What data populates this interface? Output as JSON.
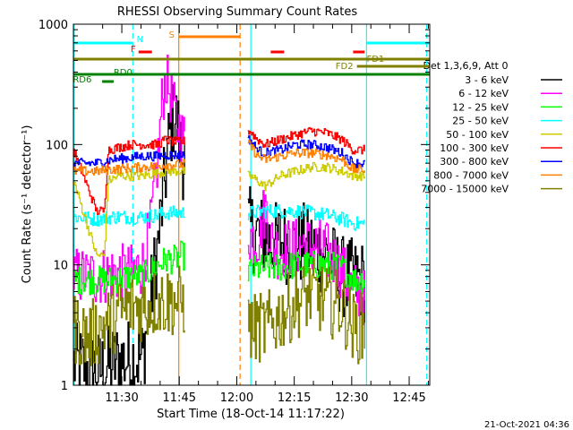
{
  "chart_data": {
    "type": "line",
    "title": "RHESSI Observing Summary Count Rates",
    "xlabel": "Start Time (18-Oct-14 11:17:22)",
    "ylabel": "Count Rate (s⁻¹ detector⁻¹)",
    "y_scale": "log",
    "ylim": [
      1,
      1000
    ],
    "xlim_minutes_after_start": [
      0,
      93
    ],
    "x_ticks": [
      "11:30",
      "11:45",
      "12:00",
      "12:15",
      "12:30",
      "12:45"
    ],
    "y_ticks": [
      "1",
      "10",
      "100",
      "1000"
    ],
    "legend_title": "Det 1,3,6,9, Att 0",
    "legend_placement": "right",
    "timestamp": "21-Oct-2021 04:36",
    "series": [
      {
        "name": "3 - 6 keV",
        "color": "#000000",
        "points": [
          [
            0,
            1.5
          ],
          [
            6,
            1.3
          ],
          [
            12,
            1.6
          ],
          [
            18,
            1.7
          ],
          [
            22,
            15
          ],
          [
            24,
            60
          ],
          [
            25,
            120
          ],
          [
            26,
            170
          ],
          [
            27,
            150
          ],
          [
            28,
            80
          ],
          [
            46,
            20
          ],
          [
            48,
            18
          ],
          [
            50,
            17
          ],
          [
            52,
            15
          ],
          [
            54,
            16
          ],
          [
            56,
            15
          ],
          [
            58,
            14
          ],
          [
            60,
            15
          ],
          [
            62,
            14
          ],
          [
            64,
            13
          ],
          [
            66,
            12
          ],
          [
            70,
            8
          ],
          [
            73,
            7.5
          ],
          [
            75,
            7.5
          ],
          [
            76,
            7
          ]
        ]
      },
      {
        "name": "6 - 12 keV",
        "color": "#ff00ff",
        "points": [
          [
            0,
            8
          ],
          [
            6,
            8
          ],
          [
            10,
            8.5
          ],
          [
            15,
            8.5
          ],
          [
            18,
            10
          ],
          [
            20,
            20
          ],
          [
            22,
            80
          ],
          [
            23,
            220
          ],
          [
            24,
            350
          ],
          [
            25,
            280
          ],
          [
            26,
            200
          ],
          [
            28,
            120
          ],
          [
            46,
            18
          ],
          [
            48,
            16
          ],
          [
            50,
            30
          ],
          [
            52,
            14
          ],
          [
            54,
            13
          ],
          [
            56,
            14
          ],
          [
            58,
            14
          ],
          [
            60,
            15
          ],
          [
            62,
            14
          ],
          [
            64,
            14
          ],
          [
            66,
            13
          ],
          [
            70,
            9
          ],
          [
            73,
            6
          ],
          [
            75,
            6
          ],
          [
            76,
            5
          ]
        ]
      },
      {
        "name": "12 - 25 keV",
        "color": "#00ff00",
        "points": [
          [
            0,
            7.5
          ],
          [
            6,
            7.5
          ],
          [
            10,
            7.5
          ],
          [
            15,
            8
          ],
          [
            18,
            8
          ],
          [
            22,
            10
          ],
          [
            24,
            11
          ],
          [
            26,
            11
          ],
          [
            28,
            12
          ],
          [
            46,
            9
          ],
          [
            50,
            9.5
          ],
          [
            54,
            9.5
          ],
          [
            58,
            10
          ],
          [
            62,
            10
          ],
          [
            66,
            10
          ],
          [
            70,
            9.5
          ],
          [
            73,
            7.5
          ],
          [
            76,
            7.5
          ]
        ]
      },
      {
        "name": "25 - 50 keV",
        "color": "#00ffff",
        "points": [
          [
            0,
            25
          ],
          [
            6,
            24
          ],
          [
            10,
            25
          ],
          [
            15,
            25
          ],
          [
            18,
            25
          ],
          [
            22,
            26
          ],
          [
            24,
            27
          ],
          [
            26,
            27
          ],
          [
            28,
            27
          ],
          [
            46,
            27
          ],
          [
            50,
            28
          ],
          [
            54,
            28
          ],
          [
            58,
            28
          ],
          [
            62,
            27
          ],
          [
            66,
            26
          ],
          [
            70,
            24
          ],
          [
            73,
            22
          ],
          [
            76,
            22
          ]
        ]
      },
      {
        "name": "50 - 100 keV",
        "color": "#cccc00",
        "points": [
          [
            0,
            50
          ],
          [
            6,
            12
          ],
          [
            8,
            12
          ],
          [
            9,
            50
          ],
          [
            12,
            55
          ],
          [
            15,
            55
          ],
          [
            18,
            55
          ],
          [
            22,
            58
          ],
          [
            24,
            60
          ],
          [
            26,
            60
          ],
          [
            28,
            60
          ],
          [
            46,
            55
          ],
          [
            48,
            50
          ],
          [
            50,
            45
          ],
          [
            54,
            55
          ],
          [
            58,
            60
          ],
          [
            62,
            65
          ],
          [
            66,
            65
          ],
          [
            70,
            60
          ],
          [
            73,
            55
          ],
          [
            76,
            55
          ]
        ]
      },
      {
        "name": "100 - 300 keV",
        "color": "#ff0000",
        "points": [
          [
            0,
            90
          ],
          [
            6,
            28
          ],
          [
            8,
            28
          ],
          [
            9,
            90
          ],
          [
            12,
            95
          ],
          [
            15,
            100
          ],
          [
            18,
            100
          ],
          [
            22,
            100
          ],
          [
            24,
            110
          ],
          [
            26,
            105
          ],
          [
            28,
            105
          ],
          [
            46,
            130
          ],
          [
            48,
            110
          ],
          [
            50,
            100
          ],
          [
            54,
            110
          ],
          [
            58,
            120
          ],
          [
            62,
            130
          ],
          [
            66,
            125
          ],
          [
            70,
            110
          ],
          [
            73,
            90
          ],
          [
            76,
            90
          ]
        ]
      },
      {
        "name": "300 - 800 keV",
        "color": "#0000ff",
        "points": [
          [
            0,
            70
          ],
          [
            6,
            70
          ],
          [
            10,
            75
          ],
          [
            15,
            78
          ],
          [
            18,
            80
          ],
          [
            22,
            80
          ],
          [
            24,
            82
          ],
          [
            26,
            82
          ],
          [
            28,
            82
          ],
          [
            46,
            110
          ],
          [
            48,
            90
          ],
          [
            50,
            85
          ],
          [
            54,
            90
          ],
          [
            58,
            100
          ],
          [
            62,
            100
          ],
          [
            66,
            95
          ],
          [
            70,
            85
          ],
          [
            73,
            70
          ],
          [
            76,
            70
          ]
        ]
      },
      {
        "name": "800 - 7000 keV",
        "color": "#ff8000",
        "points": [
          [
            0,
            60
          ],
          [
            6,
            60
          ],
          [
            10,
            62
          ],
          [
            15,
            64
          ],
          [
            18,
            65
          ],
          [
            22,
            66
          ],
          [
            24,
            68
          ],
          [
            26,
            68
          ],
          [
            28,
            68
          ],
          [
            46,
            100
          ],
          [
            48,
            80
          ],
          [
            50,
            75
          ],
          [
            54,
            80
          ],
          [
            58,
            85
          ],
          [
            62,
            85
          ],
          [
            66,
            82
          ],
          [
            70,
            75
          ],
          [
            73,
            62
          ],
          [
            76,
            62
          ]
        ]
      },
      {
        "name": "7000 - 15000 keV",
        "color": "#808000",
        "points": [
          [
            0,
            3
          ],
          [
            4,
            2.5
          ],
          [
            8,
            3.2
          ],
          [
            12,
            4
          ],
          [
            15,
            4.5
          ],
          [
            18,
            4.5
          ],
          [
            22,
            5
          ],
          [
            24,
            5
          ],
          [
            26,
            5
          ],
          [
            28,
            5
          ],
          [
            46,
            3
          ],
          [
            48,
            3
          ],
          [
            50,
            3
          ],
          [
            52,
            3.3
          ],
          [
            54,
            3.8
          ],
          [
            56,
            4.3
          ],
          [
            58,
            4.8
          ],
          [
            60,
            5.3
          ],
          [
            62,
            5.8
          ],
          [
            64,
            5.3
          ],
          [
            66,
            5
          ],
          [
            70,
            4.5
          ],
          [
            73,
            3
          ],
          [
            76,
            3
          ]
        ]
      }
    ],
    "flag_bars": [
      {
        "label": "N",
        "color": "#00ffff",
        "segments": [
          [
            0,
            15.5
          ],
          [
            76.5,
            93
          ]
        ],
        "y": 48
      },
      {
        "label": "S",
        "color": "#ff8000",
        "segments": [
          [
            27.5,
            43.5
          ]
        ],
        "y": 41
      },
      {
        "label": "F",
        "color": "#ff0000",
        "segments": [
          [
            17,
            20.5
          ],
          [
            51.5,
            55
          ],
          [
            73,
            76
          ]
        ],
        "y": 58
      },
      {
        "label": "FD1",
        "color": "#808000",
        "segments": [
          [
            0,
            93
          ]
        ],
        "y": 66
      },
      {
        "label": "FD2",
        "color": "#808000",
        "segments": [
          [
            74,
            93
          ]
        ],
        "y": 74
      },
      {
        "label": "RD0",
        "color": "#008000",
        "segments": [
          [
            0,
            93
          ]
        ],
        "y": 83
      },
      {
        "label": "RD6",
        "color": "#008000",
        "segments": [
          [
            7.5,
            10.5
          ]
        ],
        "y": 91
      }
    ],
    "vertical_markers": [
      {
        "color": "#00ffff",
        "style": "solid",
        "x": 0.2
      },
      {
        "color": "#00ffff",
        "style": "dashed",
        "x": 15.5
      },
      {
        "color": "#ff8000",
        "style": "solid",
        "x": 27.5
      },
      {
        "color": "#ff8000",
        "style": "dashed",
        "x": 43.5
      },
      {
        "color": "#00ffff",
        "style": "solid",
        "x": 46.3
      },
      {
        "color": "#00ffff",
        "style": "solid",
        "x": 76.5
      },
      {
        "color": "#00ffff",
        "style": "dashed",
        "x": 92.2
      }
    ],
    "data_gaps": [
      [
        29,
        45.5
      ]
    ]
  }
}
